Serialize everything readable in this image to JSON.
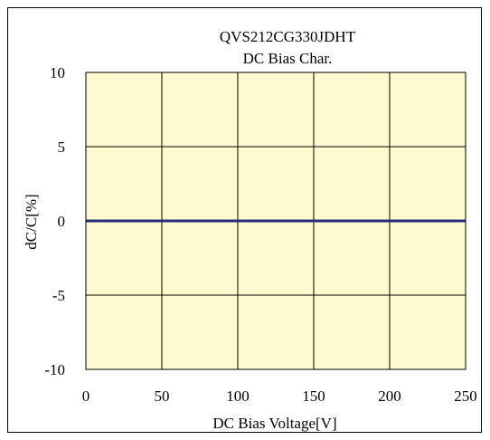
{
  "chart_data": {
    "type": "line",
    "title": "QVS212CG330JDHT",
    "subtitle": "DC Bias Char.",
    "xlabel": "DC Bias Voltage[V]",
    "ylabel": "dC/C[%]",
    "xlim": [
      0,
      250
    ],
    "ylim": [
      -10,
      10
    ],
    "xticks": [
      "0",
      "50",
      "100",
      "150",
      "200",
      "250"
    ],
    "yticks": [
      "10",
      "5",
      "0",
      "-5",
      "-10"
    ],
    "grid": true,
    "legend": "none",
    "series": [
      {
        "x": [
          0,
          25,
          50,
          75,
          100,
          125,
          150,
          175,
          200,
          225,
          250
        ],
        "y": [
          0,
          0,
          0,
          0,
          0,
          0,
          0,
          0,
          0,
          0,
          0
        ]
      }
    ]
  },
  "colors": {
    "plot_background": "#FFFACD",
    "line": "#1F2F7A",
    "grid": "#000000"
  }
}
